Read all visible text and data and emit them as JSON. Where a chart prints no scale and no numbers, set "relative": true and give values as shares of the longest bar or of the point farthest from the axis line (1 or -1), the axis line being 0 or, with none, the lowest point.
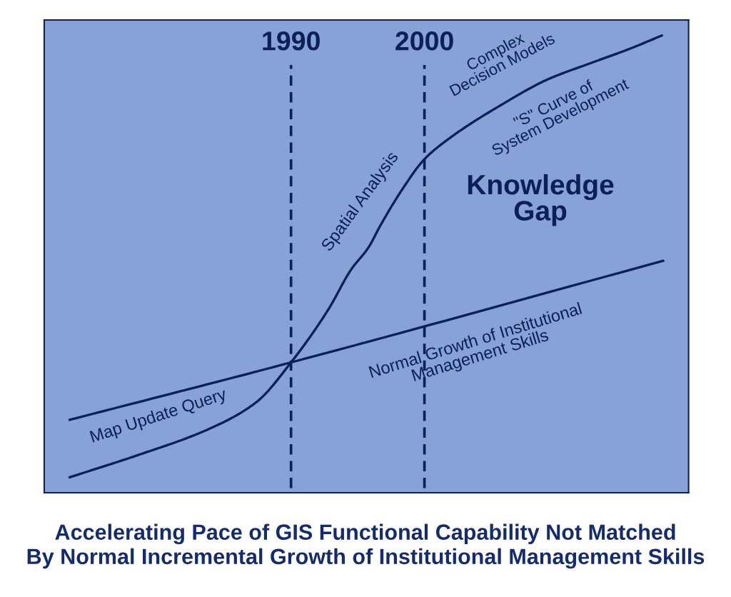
{
  "chart_data": {
    "type": "line",
    "relative": true,
    "tick_labels": "x",
    "grid": "x",
    "title": "Accelerating Pace of GIS Functional Capability Not Matched\nBy Normal Incremental Growth of Institutional Management Skills",
    "xlim": [
      1971.5,
      2019.8
    ],
    "xticks": [
      1990,
      2000
    ],
    "series": [
      {
        "color": "#0c1f57",
        "x": [
          1973.4,
          1978.5,
          1983.9,
          1987.4,
          1990.0,
          1992.8,
          1994.5,
          1995.8,
          1996.7,
          1998.3,
          2000.0,
          2002.0,
          2005.6,
          2009.2,
          2012.7,
          2015.4,
          2017.8
        ],
        "values": [
          0,
          0.05,
          0.11,
          0.17,
          0.26,
          0.38,
          0.47,
          0.52,
          0.57,
          0.65,
          0.72,
          0.77,
          0.84,
          0.9,
          0.94,
          0.97,
          1.0
        ]
      },
      {
        "color": "#0c1f57",
        "x": [
          1973.4,
          1990.0,
          2017.9
        ],
        "values": [
          0.13,
          0.26,
          0.49
        ]
      }
    ],
    "annotations": [
      "Map Update Query",
      "Spatial Analysis",
      "Complex\nDecision Models",
      "\"S\" Curve of\nSystem Development",
      "Knowledge\nGap",
      "Normal Growth of Institutional\nManagement Skills"
    ]
  }
}
